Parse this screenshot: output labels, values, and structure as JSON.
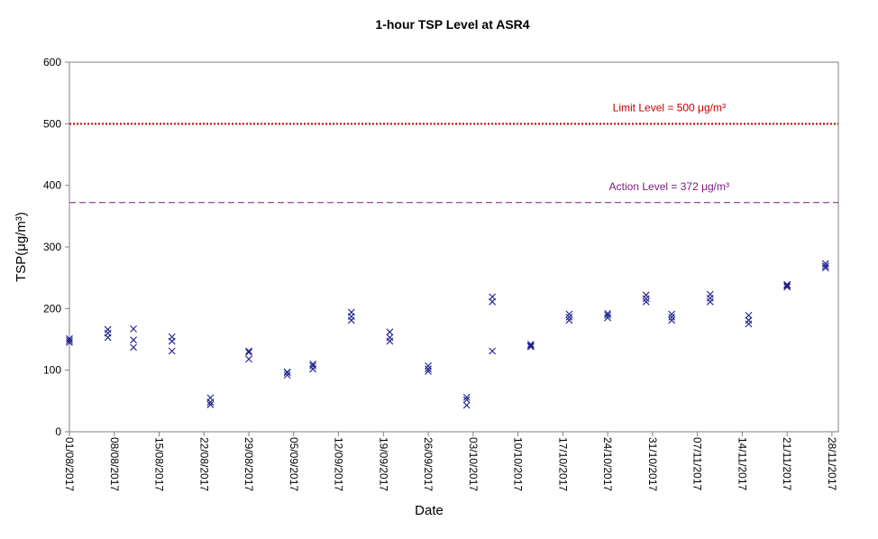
{
  "chart_data": {
    "type": "scatter",
    "title": "1-hour TSP Level at ASR4",
    "xlabel": "Date",
    "ylabel": "TSP(μg/m³)",
    "ylim": [
      0,
      600
    ],
    "yticks": [
      0,
      100,
      200,
      300,
      400,
      500,
      600
    ],
    "xlim": [
      "2017-08-01",
      "2017-11-29"
    ],
    "xticks": [
      "01/08/2017",
      "08/08/2017",
      "15/08/2017",
      "22/08/2017",
      "29/08/2017",
      "05/09/2017",
      "12/09/2017",
      "19/09/2017",
      "26/09/2017",
      "03/10/2017",
      "10/10/2017",
      "17/10/2017",
      "24/10/2017",
      "31/10/2017",
      "07/11/2017",
      "14/11/2017",
      "21/11/2017",
      "28/11/2017"
    ],
    "grid": false,
    "marker": "x",
    "marker_color": "#1f1f8f",
    "reference_lines": [
      {
        "label": "Limit Level = 500 μg/m³",
        "value": 500,
        "style": "dotted",
        "color": "#c00000"
      },
      {
        "label": "Action Level = 372 μg/m³",
        "value": 372,
        "style": "dashed",
        "color": "#7a1a7a"
      }
    ],
    "series": [
      {
        "points": [
          [
            "2017-08-01",
            145
          ],
          [
            "2017-08-01",
            148
          ],
          [
            "2017-08-01",
            151
          ],
          [
            "2017-08-07",
            153
          ],
          [
            "2017-08-07",
            160
          ],
          [
            "2017-08-07",
            166
          ],
          [
            "2017-08-11",
            137
          ],
          [
            "2017-08-11",
            149
          ],
          [
            "2017-08-11",
            167
          ],
          [
            "2017-08-17",
            131
          ],
          [
            "2017-08-17",
            147
          ],
          [
            "2017-08-17",
            154
          ],
          [
            "2017-08-23",
            44
          ],
          [
            "2017-08-23",
            48
          ],
          [
            "2017-08-23",
            55
          ],
          [
            "2017-08-29",
            118
          ],
          [
            "2017-08-29",
            129
          ],
          [
            "2017-08-29",
            131
          ],
          [
            "2017-09-04",
            92
          ],
          [
            "2017-09-04",
            96
          ],
          [
            "2017-09-04",
            97
          ],
          [
            "2017-09-08",
            102
          ],
          [
            "2017-09-08",
            107
          ],
          [
            "2017-09-08",
            110
          ],
          [
            "2017-09-14",
            181
          ],
          [
            "2017-09-14",
            187
          ],
          [
            "2017-09-14",
            194
          ],
          [
            "2017-09-20",
            147
          ],
          [
            "2017-09-20",
            153
          ],
          [
            "2017-09-20",
            162
          ],
          [
            "2017-09-26",
            98
          ],
          [
            "2017-09-26",
            102
          ],
          [
            "2017-09-26",
            107
          ],
          [
            "2017-10-02",
            43
          ],
          [
            "2017-10-02",
            52
          ],
          [
            "2017-10-02",
            56
          ],
          [
            "2017-10-06",
            131
          ],
          [
            "2017-10-06",
            211
          ],
          [
            "2017-10-06",
            219
          ],
          [
            "2017-10-12",
            138
          ],
          [
            "2017-10-12",
            140
          ],
          [
            "2017-10-12",
            142
          ],
          [
            "2017-10-18",
            181
          ],
          [
            "2017-10-18",
            186
          ],
          [
            "2017-10-18",
            191
          ],
          [
            "2017-10-24",
            185
          ],
          [
            "2017-10-24",
            189
          ],
          [
            "2017-10-24",
            192
          ],
          [
            "2017-10-30",
            211
          ],
          [
            "2017-10-30",
            216
          ],
          [
            "2017-10-30",
            222
          ],
          [
            "2017-11-03",
            181
          ],
          [
            "2017-11-03",
            186
          ],
          [
            "2017-11-03",
            191
          ],
          [
            "2017-11-09",
            211
          ],
          [
            "2017-11-09",
            217
          ],
          [
            "2017-11-09",
            223
          ],
          [
            "2017-11-15",
            175
          ],
          [
            "2017-11-15",
            181
          ],
          [
            "2017-11-15",
            189
          ],
          [
            "2017-11-21",
            235
          ],
          [
            "2017-11-21",
            237
          ],
          [
            "2017-11-21",
            239
          ],
          [
            "2017-11-27",
            266
          ],
          [
            "2017-11-27",
            269
          ],
          [
            "2017-11-27",
            273
          ]
        ]
      }
    ]
  }
}
